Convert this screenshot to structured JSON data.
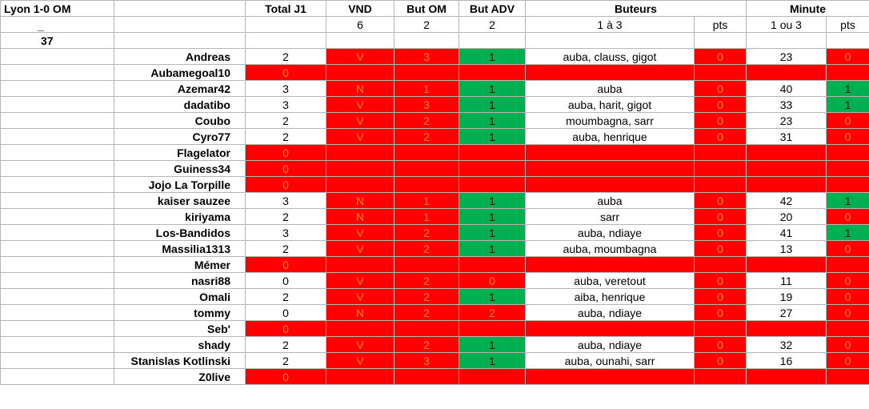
{
  "header": {
    "match": "Lyon 1-0 OM",
    "dash": "_",
    "number": "37",
    "total_j1": "Total J1",
    "vnd": "VND",
    "but_om": "But OM",
    "but_adv": "But ADV",
    "buteurs": "Buteurs",
    "minute": "Minute",
    "vnd_val": "6",
    "but_om_val": "2",
    "but_adv_val": "2",
    "buteurs_range": "1 à 3",
    "pts": "pts",
    "minute_range": "1 ou 3",
    "pts2": "pts"
  },
  "rows": [
    {
      "name": "Andreas",
      "total": "2",
      "vnd": "V",
      "om": "3",
      "adv": "1",
      "advc": "green",
      "buteurs": "auba, clauss, gigot",
      "bpts": "0",
      "minute": "23",
      "mpts": "0",
      "mptsc": "red",
      "absent": false
    },
    {
      "name": "Aubamegoal10",
      "total": "0",
      "absent": true
    },
    {
      "name": "Azemar42",
      "total": "3",
      "vnd": "N",
      "om": "1",
      "adv": "1",
      "advc": "green",
      "buteurs": "auba",
      "bpts": "0",
      "minute": "40",
      "mpts": "1",
      "mptsc": "green",
      "absent": false
    },
    {
      "name": "dadatibo",
      "total": "3",
      "vnd": "V",
      "om": "3",
      "adv": "1",
      "advc": "green",
      "buteurs": "auba, harit, gigot",
      "bpts": "0",
      "minute": "33",
      "mpts": "1",
      "mptsc": "green",
      "absent": false
    },
    {
      "name": "Coubo",
      "total": "2",
      "vnd": "V",
      "om": "2",
      "adv": "1",
      "advc": "green",
      "buteurs": "moumbagna, sarr",
      "bpts": "0",
      "minute": "23",
      "mpts": "0",
      "mptsc": "red",
      "absent": false
    },
    {
      "name": "Cyro77",
      "total": "2",
      "vnd": "V",
      "om": "2",
      "adv": "1",
      "advc": "green",
      "buteurs": "auba, henrique",
      "bpts": "0",
      "minute": "31",
      "mpts": "0",
      "mptsc": "red",
      "absent": false
    },
    {
      "name": "Flagelator",
      "total": "0",
      "absent": true
    },
    {
      "name": "Guiness34",
      "total": "0",
      "absent": true
    },
    {
      "name": "Jojo La Torpille",
      "total": "0",
      "absent": true
    },
    {
      "name": "kaiser sauzee",
      "total": "3",
      "vnd": "N",
      "om": "1",
      "adv": "1",
      "advc": "green",
      "buteurs": "auba",
      "bpts": "0",
      "minute": "42",
      "mpts": "1",
      "mptsc": "green",
      "absent": false
    },
    {
      "name": "kiriyama",
      "total": "2",
      "vnd": "N",
      "om": "1",
      "adv": "1",
      "advc": "green",
      "buteurs": "sarr",
      "bpts": "0",
      "minute": "20",
      "mpts": "0",
      "mptsc": "red",
      "absent": false
    },
    {
      "name": "Los-Bandidos",
      "total": "3",
      "vnd": "V",
      "om": "2",
      "adv": "1",
      "advc": "green",
      "buteurs": "auba, ndiaye",
      "bpts": "0",
      "minute": "41",
      "mpts": "1",
      "mptsc": "green",
      "absent": false
    },
    {
      "name": "Massilia1313",
      "total": "2",
      "vnd": "V",
      "om": "2",
      "adv": "1",
      "advc": "green",
      "buteurs": "auba, moumbagna",
      "bpts": "0",
      "minute": "13",
      "mpts": "0",
      "mptsc": "red",
      "absent": false
    },
    {
      "name": "Mémer",
      "total": "0",
      "absent": true
    },
    {
      "name": "nasri88",
      "total": "0",
      "vnd": "V",
      "om": "2",
      "adv": "0",
      "advc": "red",
      "buteurs": "auba, veretout",
      "bpts": "0",
      "minute": "11",
      "mpts": "0",
      "mptsc": "red",
      "absent": false
    },
    {
      "name": "Omali",
      "total": "2",
      "vnd": "V",
      "om": "2",
      "adv": "1",
      "advc": "green",
      "buteurs": "aiba, henrique",
      "bpts": "0",
      "minute": "19",
      "mpts": "0",
      "mptsc": "red",
      "absent": false
    },
    {
      "name": "tommy",
      "total": "0",
      "vnd": "N",
      "om": "2",
      "adv": "2",
      "advc": "red",
      "buteurs": "auba, ndiaye",
      "bpts": "0",
      "minute": "27",
      "mpts": "0",
      "mptsc": "red",
      "absent": false
    },
    {
      "name": "Seb'",
      "total": "0",
      "absent": true
    },
    {
      "name": "shady",
      "total": "2",
      "vnd": "V",
      "om": "2",
      "adv": "1",
      "advc": "green",
      "buteurs": "auba, ndiaye",
      "bpts": "0",
      "minute": "32",
      "mpts": "0",
      "mptsc": "red",
      "absent": false
    },
    {
      "name": "Stanislas Kotlinski",
      "total": "2",
      "vnd": "V",
      "om": "3",
      "adv": "1",
      "advc": "green",
      "buteurs": "auba, ounahi, sarr",
      "bpts": "0",
      "minute": "16",
      "mpts": "0",
      "mptsc": "red",
      "absent": false
    },
    {
      "name": "Z0live",
      "total": "0",
      "absent": true
    }
  ]
}
